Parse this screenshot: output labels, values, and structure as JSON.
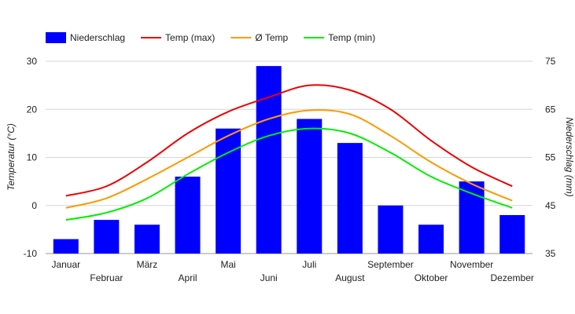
{
  "chart_data": {
    "type": "bar+line",
    "categories": [
      "Januar",
      "Februar",
      "März",
      "April",
      "Mai",
      "Juni",
      "Juli",
      "August",
      "September",
      "Oktober",
      "November",
      "Dezember"
    ],
    "bars": {
      "name": "Niederschlag",
      "axis": "right",
      "color": "#0000ff",
      "values": [
        38,
        42,
        41,
        51,
        61,
        74,
        63,
        58,
        45,
        41,
        50,
        43
      ]
    },
    "lines": [
      {
        "name": "Temp (max)",
        "axis": "left",
        "color": "#ee0000",
        "values": [
          2,
          4,
          9,
          15,
          19.5,
          22.5,
          25,
          24,
          20,
          13.5,
          8,
          4
        ]
      },
      {
        "name": "Ø Temp",
        "axis": "left",
        "color": "#ff9900",
        "values": [
          -0.5,
          1.5,
          5.5,
          10,
          14.5,
          18,
          19.8,
          19,
          14.5,
          9,
          4.5,
          1
        ]
      },
      {
        "name": "Temp (min)",
        "axis": "left",
        "color": "#00ee00",
        "values": [
          -3,
          -1.5,
          1.5,
          6.5,
          11,
          14.5,
          16,
          15,
          11,
          6,
          2.5,
          -0.5
        ]
      }
    ],
    "y_left": {
      "label": "Temperatur (°C)",
      "range": [
        -10,
        30
      ],
      "ticks": [
        "30",
        "20",
        "10",
        "0",
        "-10"
      ]
    },
    "y_right": {
      "label": "Niederschlag (mm)",
      "range": [
        35,
        75
      ],
      "ticks": [
        "75",
        "65",
        "55",
        "45",
        "35"
      ]
    },
    "grid": true,
    "legend": "top-left",
    "legend_items": [
      {
        "label": "Niederschlag",
        "kind": "box",
        "color": "#0000ff"
      },
      {
        "label": "Temp (max)",
        "kind": "line",
        "color": "#ee0000"
      },
      {
        "label": "Ø Temp",
        "kind": "line",
        "color": "#ff9900"
      },
      {
        "label": "Temp (min)",
        "kind": "line",
        "color": "#00ee00"
      }
    ]
  }
}
